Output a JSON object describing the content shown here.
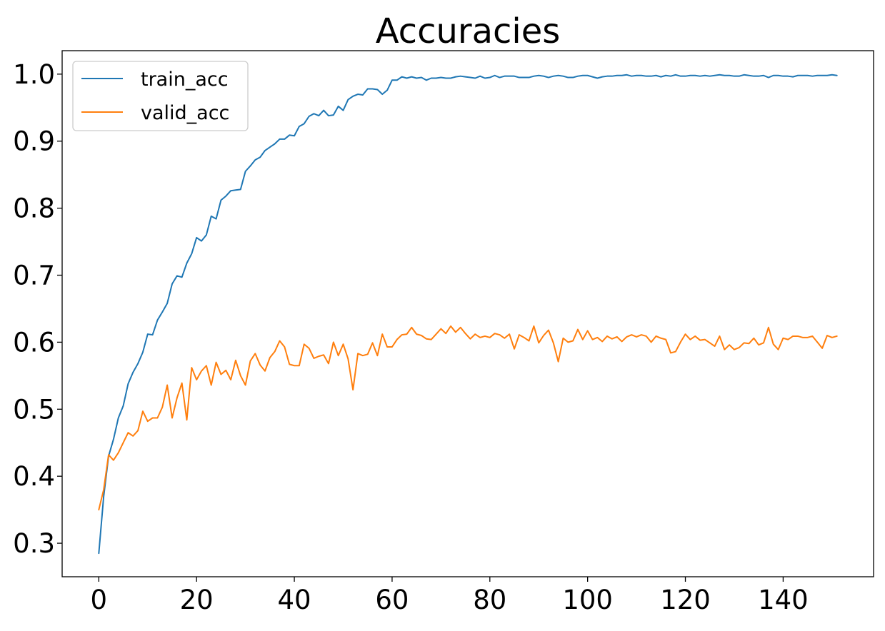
{
  "chart_data": {
    "type": "line",
    "title": "Accuracies",
    "xlabel": "",
    "ylabel": "",
    "xlim": [
      -7.5,
      158.5
    ],
    "ylim": [
      0.25,
      1.035
    ],
    "xticks": [
      0,
      20,
      40,
      60,
      80,
      100,
      120,
      140
    ],
    "yticks": [
      0.3,
      0.4,
      0.5,
      0.6,
      0.7,
      0.8,
      0.9,
      1.0
    ],
    "xtick_labels": [
      "0",
      "20",
      "40",
      "60",
      "80",
      "100",
      "120",
      "140"
    ],
    "ytick_labels": [
      "0.3",
      "0.4",
      "0.5",
      "0.6",
      "0.7",
      "0.8",
      "0.9",
      "1.0"
    ],
    "grid": false,
    "legend_position": "upper-left",
    "series": [
      {
        "name": "train_acc",
        "color": "#1f77b4",
        "x": [
          0,
          1,
          2,
          3,
          4,
          5,
          6,
          7,
          8,
          9,
          10,
          11,
          12,
          13,
          14,
          15,
          16,
          17,
          18,
          19,
          20,
          21,
          22,
          23,
          24,
          25,
          26,
          27,
          28,
          29,
          30,
          31,
          32,
          33,
          34,
          35,
          36,
          37,
          38,
          39,
          40,
          41,
          42,
          43,
          44,
          45,
          46,
          47,
          48,
          49,
          50,
          51,
          52,
          53,
          54,
          55,
          56,
          57,
          58,
          59,
          60,
          61,
          62,
          63,
          64,
          65,
          66,
          67,
          68,
          69,
          70,
          71,
          72,
          73,
          74,
          75,
          76,
          77,
          78,
          79,
          80,
          81,
          82,
          83,
          84,
          85,
          86,
          87,
          88,
          89,
          90,
          91,
          92,
          93,
          94,
          95,
          96,
          97,
          98,
          99,
          100,
          101,
          102,
          103,
          104,
          105,
          106,
          107,
          108,
          109,
          110,
          111,
          112,
          113,
          114,
          115,
          116,
          117,
          118,
          119,
          120,
          121,
          122,
          123,
          124,
          125,
          126,
          127,
          128,
          129,
          130,
          131,
          132,
          133,
          134,
          135,
          136,
          137,
          138,
          139,
          140,
          141,
          142,
          143,
          144,
          145,
          146,
          147,
          148,
          149,
          150,
          151
        ],
        "values": [
          0.285,
          0.37,
          0.43,
          0.455,
          0.487,
          0.505,
          0.538,
          0.555,
          0.568,
          0.585,
          0.612,
          0.611,
          0.633,
          0.645,
          0.658,
          0.687,
          0.699,
          0.697,
          0.718,
          0.732,
          0.756,
          0.751,
          0.76,
          0.788,
          0.784,
          0.812,
          0.818,
          0.826,
          0.827,
          0.828,
          0.855,
          0.863,
          0.872,
          0.876,
          0.886,
          0.891,
          0.896,
          0.903,
          0.903,
          0.909,
          0.908,
          0.922,
          0.926,
          0.937,
          0.941,
          0.938,
          0.946,
          0.938,
          0.939,
          0.952,
          0.946,
          0.962,
          0.967,
          0.97,
          0.969,
          0.978,
          0.978,
          0.977,
          0.97,
          0.976,
          0.991,
          0.991,
          0.996,
          0.994,
          0.996,
          0.994,
          0.995,
          0.991,
          0.994,
          0.994,
          0.995,
          0.994,
          0.994,
          0.996,
          0.997,
          0.996,
          0.995,
          0.994,
          0.997,
          0.994,
          0.995,
          0.998,
          0.995,
          0.997,
          0.997,
          0.997,
          0.995,
          0.995,
          0.995,
          0.997,
          0.998,
          0.997,
          0.995,
          0.997,
          0.998,
          0.997,
          0.995,
          0.995,
          0.997,
          0.998,
          0.998,
          0.996,
          0.994,
          0.996,
          0.997,
          0.997,
          0.998,
          0.998,
          0.999,
          0.997,
          0.998,
          0.998,
          0.997,
          0.997,
          0.998,
          0.996,
          0.998,
          0.997,
          0.999,
          0.997,
          0.997,
          0.998,
          0.998,
          0.997,
          0.998,
          0.997,
          0.998,
          0.999,
          0.998,
          0.998,
          0.997,
          0.997,
          0.999,
          0.998,
          0.997,
          0.997,
          0.998,
          0.995,
          0.998,
          0.998,
          0.997,
          0.997,
          0.996,
          0.998,
          0.998,
          0.998,
          0.997,
          0.998,
          0.998,
          0.998,
          0.999,
          0.998
        ]
      },
      {
        "name": "valid_acc",
        "color": "#ff7f0e",
        "x": [
          0,
          1,
          2,
          3,
          4,
          5,
          6,
          7,
          8,
          9,
          10,
          11,
          12,
          13,
          14,
          15,
          16,
          17,
          18,
          19,
          20,
          21,
          22,
          23,
          24,
          25,
          26,
          27,
          28,
          29,
          30,
          31,
          32,
          33,
          34,
          35,
          36,
          37,
          38,
          39,
          40,
          41,
          42,
          43,
          44,
          45,
          46,
          47,
          48,
          49,
          50,
          51,
          52,
          53,
          54,
          55,
          56,
          57,
          58,
          59,
          60,
          61,
          62,
          63,
          64,
          65,
          66,
          67,
          68,
          69,
          70,
          71,
          72,
          73,
          74,
          75,
          76,
          77,
          78,
          79,
          80,
          81,
          82,
          83,
          84,
          85,
          86,
          87,
          88,
          89,
          90,
          91,
          92,
          93,
          94,
          95,
          96,
          97,
          98,
          99,
          100,
          101,
          102,
          103,
          104,
          105,
          106,
          107,
          108,
          109,
          110,
          111,
          112,
          113,
          114,
          115,
          116,
          117,
          118,
          119,
          120,
          121,
          122,
          123,
          124,
          125,
          126,
          127,
          128,
          129,
          130,
          131,
          132,
          133,
          134,
          135,
          136,
          137,
          138,
          139,
          140,
          141,
          142,
          143,
          144,
          145,
          146,
          147,
          148,
          149,
          150,
          151
        ],
        "values": [
          0.35,
          0.38,
          0.432,
          0.424,
          0.435,
          0.45,
          0.465,
          0.46,
          0.468,
          0.497,
          0.482,
          0.487,
          0.487,
          0.503,
          0.536,
          0.487,
          0.517,
          0.539,
          0.484,
          0.562,
          0.544,
          0.557,
          0.565,
          0.536,
          0.57,
          0.552,
          0.558,
          0.544,
          0.573,
          0.55,
          0.536,
          0.572,
          0.583,
          0.566,
          0.557,
          0.577,
          0.586,
          0.602,
          0.593,
          0.567,
          0.565,
          0.565,
          0.597,
          0.591,
          0.576,
          0.579,
          0.581,
          0.568,
          0.6,
          0.58,
          0.597,
          0.575,
          0.529,
          0.583,
          0.58,
          0.582,
          0.599,
          0.58,
          0.612,
          0.593,
          0.593,
          0.604,
          0.611,
          0.612,
          0.622,
          0.612,
          0.61,
          0.605,
          0.604,
          0.612,
          0.62,
          0.613,
          0.624,
          0.615,
          0.622,
          0.613,
          0.605,
          0.612,
          0.607,
          0.609,
          0.607,
          0.613,
          0.611,
          0.606,
          0.612,
          0.59,
          0.611,
          0.607,
          0.602,
          0.624,
          0.599,
          0.61,
          0.618,
          0.599,
          0.571,
          0.606,
          0.6,
          0.602,
          0.619,
          0.604,
          0.617,
          0.604,
          0.607,
          0.601,
          0.609,
          0.605,
          0.608,
          0.601,
          0.608,
          0.611,
          0.608,
          0.611,
          0.609,
          0.6,
          0.609,
          0.606,
          0.604,
          0.584,
          0.586,
          0.6,
          0.612,
          0.604,
          0.609,
          0.603,
          0.604,
          0.599,
          0.594,
          0.609,
          0.589,
          0.596,
          0.589,
          0.592,
          0.599,
          0.598,
          0.606,
          0.596,
          0.599,
          0.622,
          0.597,
          0.589,
          0.606,
          0.604,
          0.609,
          0.609,
          0.607,
          0.607,
          0.609,
          0.6,
          0.591,
          0.61,
          0.607,
          0.609
        ]
      }
    ]
  }
}
